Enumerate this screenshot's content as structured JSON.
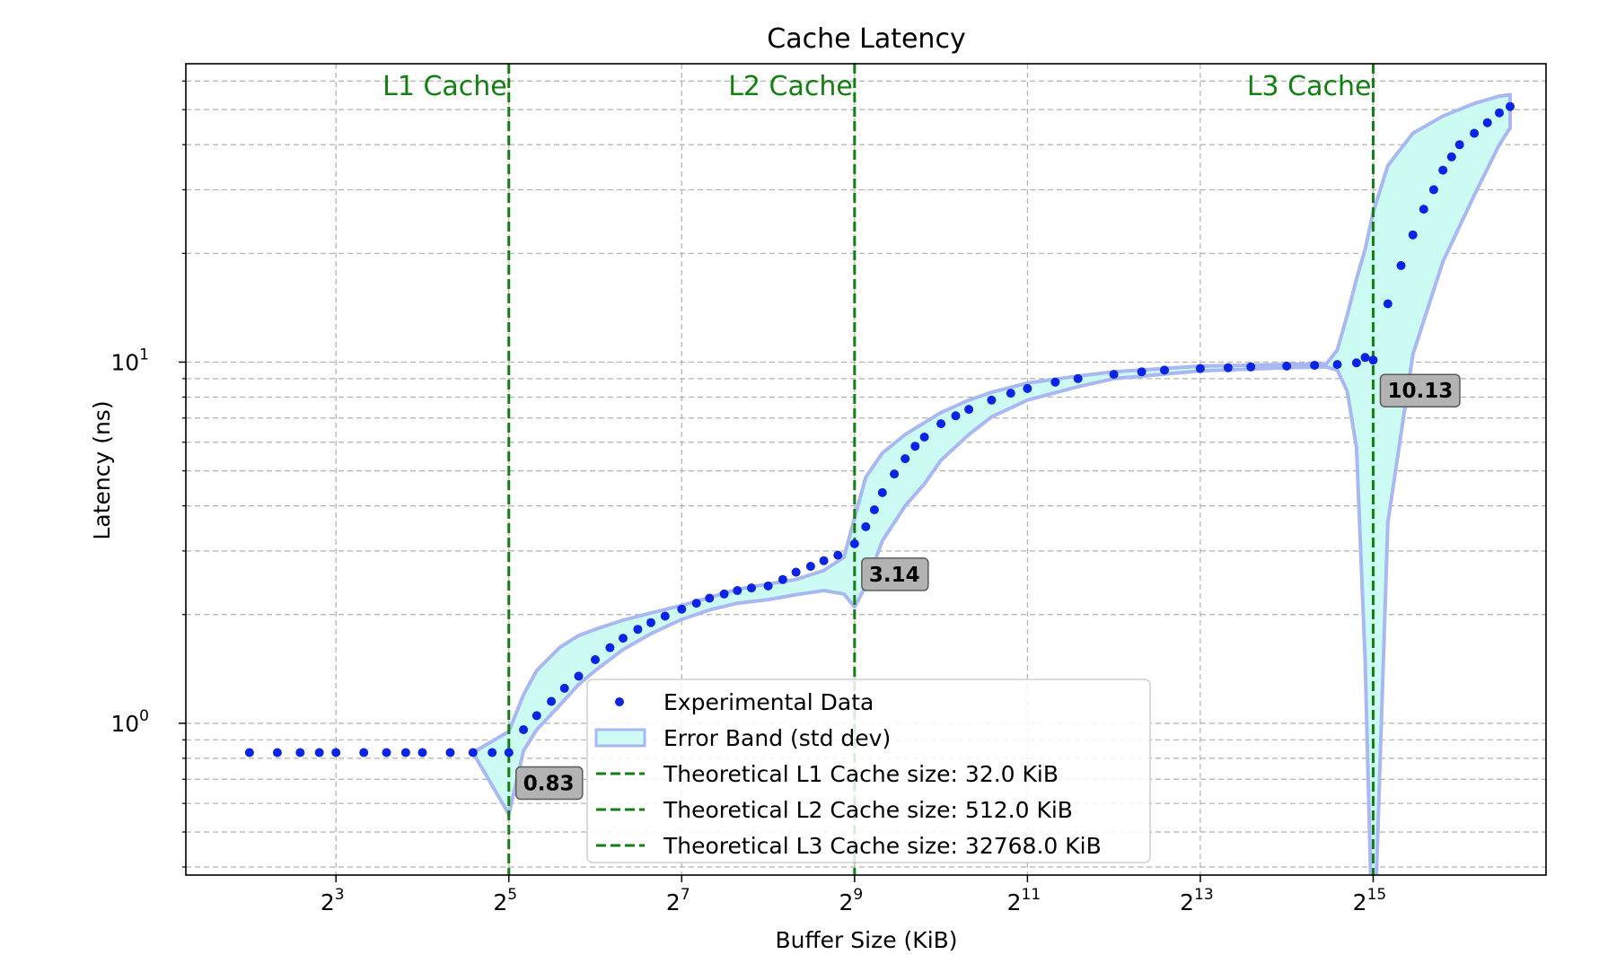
{
  "chart_data": {
    "type": "scatter",
    "title": "Cache Latency",
    "xlabel": "Buffer Size (KiB)",
    "ylabel": "Latency (ns)",
    "xscale": "log2",
    "yscale": "log10",
    "xlim": [
      2.4,
      131072
    ],
    "ylim": [
      0.38,
      67
    ],
    "xticks": [
      {
        "value": 8,
        "base": "2",
        "exp": "3"
      },
      {
        "value": 32,
        "base": "2",
        "exp": "5"
      },
      {
        "value": 128,
        "base": "2",
        "exp": "7"
      },
      {
        "value": 512,
        "base": "2",
        "exp": "9"
      },
      {
        "value": 2048,
        "base": "2",
        "exp": "11"
      },
      {
        "value": 8192,
        "base": "2",
        "exp": "13"
      },
      {
        "value": 32768,
        "base": "2",
        "exp": "15"
      }
    ],
    "yticks": [
      {
        "value": 1,
        "base": "10",
        "exp": "0"
      },
      {
        "value": 10,
        "base": "10",
        "exp": "1"
      }
    ],
    "grid": true,
    "legend_position": "bottom-center",
    "colors": {
      "points": "#0a24e6",
      "band_fill": "#ccfbf4",
      "band_edge": "#a9b8f2",
      "cache_lines": "#118011",
      "label_box": "#b3b3b3"
    },
    "series": [
      {
        "name": "Experimental Data",
        "kind": "scatter",
        "points": [
          [
            4.0,
            0.83
          ],
          [
            5.0,
            0.83
          ],
          [
            6.0,
            0.83
          ],
          [
            7.0,
            0.83
          ],
          [
            8.0,
            0.83
          ],
          [
            10.0,
            0.83
          ],
          [
            12.0,
            0.83
          ],
          [
            14.0,
            0.83
          ],
          [
            16.0,
            0.83
          ],
          [
            20.0,
            0.83
          ],
          [
            24.0,
            0.83
          ],
          [
            28.0,
            0.83
          ],
          [
            32.0,
            0.83
          ],
          [
            36.0,
            0.96
          ],
          [
            40.0,
            1.05
          ],
          [
            45.0,
            1.15
          ],
          [
            50.0,
            1.25
          ],
          [
            56.0,
            1.35
          ],
          [
            64.0,
            1.5
          ],
          [
            72.0,
            1.62
          ],
          [
            80.0,
            1.72
          ],
          [
            90.0,
            1.82
          ],
          [
            100.0,
            1.9
          ],
          [
            112.0,
            1.98
          ],
          [
            128.0,
            2.07
          ],
          [
            144.0,
            2.15
          ],
          [
            160.0,
            2.22
          ],
          [
            180.0,
            2.28
          ],
          [
            200.0,
            2.33
          ],
          [
            224.0,
            2.37
          ],
          [
            256.0,
            2.4
          ],
          [
            288.0,
            2.5
          ],
          [
            320.0,
            2.62
          ],
          [
            360.0,
            2.72
          ],
          [
            400.0,
            2.82
          ],
          [
            448.0,
            2.92
          ],
          [
            512.0,
            3.14
          ],
          [
            560.0,
            3.5
          ],
          [
            600.0,
            3.9
          ],
          [
            640.0,
            4.35
          ],
          [
            704.0,
            4.9
          ],
          [
            768.0,
            5.4
          ],
          [
            832.0,
            5.85
          ],
          [
            896.0,
            6.2
          ],
          [
            1024.0,
            6.75
          ],
          [
            1152.0,
            7.1
          ],
          [
            1280.0,
            7.4
          ],
          [
            1536.0,
            7.85
          ],
          [
            1792.0,
            8.2
          ],
          [
            2048.0,
            8.45
          ],
          [
            2560.0,
            8.8
          ],
          [
            3072.0,
            9.0
          ],
          [
            4096.0,
            9.25
          ],
          [
            5120.0,
            9.4
          ],
          [
            6144.0,
            9.5
          ],
          [
            8192.0,
            9.6
          ],
          [
            10240.0,
            9.65
          ],
          [
            12288.0,
            9.7
          ],
          [
            16384.0,
            9.75
          ],
          [
            20480.0,
            9.8
          ],
          [
            24576.0,
            9.85
          ],
          [
            28672.0,
            9.95
          ],
          [
            30720.0,
            10.3
          ],
          [
            32768.0,
            10.13
          ],
          [
            36864.0,
            14.5
          ],
          [
            40960.0,
            18.5
          ],
          [
            45056.0,
            22.5
          ],
          [
            49152.0,
            26.5
          ],
          [
            53248.0,
            30.0
          ],
          [
            57344.0,
            34.0
          ],
          [
            61440.0,
            37.0
          ],
          [
            65536.0,
            40.0
          ],
          [
            73728.0,
            43.0
          ],
          [
            81920.0,
            46.0
          ],
          [
            90112.0,
            49.0
          ],
          [
            98304.0,
            51.0
          ]
        ]
      },
      {
        "name": "Error Band (std dev)",
        "kind": "band",
        "x": [
          24,
          32,
          36,
          40,
          48,
          56,
          64,
          80,
          100,
          128,
          160,
          200,
          256,
          320,
          400,
          470,
          512,
          560,
          640,
          768,
          896,
          1024,
          1280,
          1536,
          2048,
          3072,
          4096,
          8192,
          16384,
          22528,
          24576,
          26624,
          28672,
          30720,
          32768,
          36864,
          45056,
          57344,
          73728,
          90112,
          98304
        ],
        "lower": [
          0.83,
          0.56,
          0.84,
          0.96,
          1.12,
          1.28,
          1.4,
          1.6,
          1.77,
          1.94,
          2.06,
          2.15,
          2.2,
          2.27,
          2.33,
          2.28,
          2.1,
          2.4,
          3.2,
          4.0,
          4.6,
          5.35,
          6.3,
          7.05,
          7.85,
          8.55,
          9.0,
          9.45,
          9.65,
          9.7,
          9.5,
          8.3,
          5.8,
          1.5,
          0.2,
          3.6,
          10.5,
          19.0,
          29.0,
          40.0,
          44.5
        ],
        "upper": [
          0.83,
          0.95,
          1.2,
          1.4,
          1.62,
          1.75,
          1.82,
          1.93,
          2.02,
          2.12,
          2.23,
          2.35,
          2.43,
          2.5,
          2.65,
          2.88,
          3.7,
          4.8,
          5.6,
          6.3,
          6.8,
          7.25,
          7.85,
          8.25,
          8.75,
          9.15,
          9.4,
          9.75,
          9.85,
          9.9,
          10.8,
          13.5,
          17.0,
          20.5,
          26.0,
          35.0,
          43.0,
          48.0,
          52.0,
          54.5,
          55.0
        ]
      }
    ],
    "reference_lines": [
      {
        "name": "Theoretical L1 Cache size: 32.0 KiB",
        "x": 32,
        "label": "L1 Cache"
      },
      {
        "name": "Theoretical L2 Cache size: 512.0 KiB",
        "x": 512,
        "label": "L2 Cache"
      },
      {
        "name": "Theoretical L3 Cache size: 32768.0 KiB",
        "x": 32768,
        "label": "L3 Cache"
      }
    ],
    "annotations": [
      {
        "text": "0.83",
        "x": 32,
        "y": 0.83
      },
      {
        "text": "3.14",
        "x": 512,
        "y": 3.14
      },
      {
        "text": "10.13",
        "x": 32768,
        "y": 10.13
      }
    ],
    "legend": [
      {
        "label": "Experimental Data",
        "kind": "point"
      },
      {
        "label": "Error Band (std dev)",
        "kind": "band"
      },
      {
        "label": "Theoretical L1 Cache size: 32.0 KiB",
        "kind": "dashed"
      },
      {
        "label": "Theoretical L2 Cache size: 512.0 KiB",
        "kind": "dashed"
      },
      {
        "label": "Theoretical L3 Cache size: 32768.0 KiB",
        "kind": "dashed"
      }
    ]
  }
}
